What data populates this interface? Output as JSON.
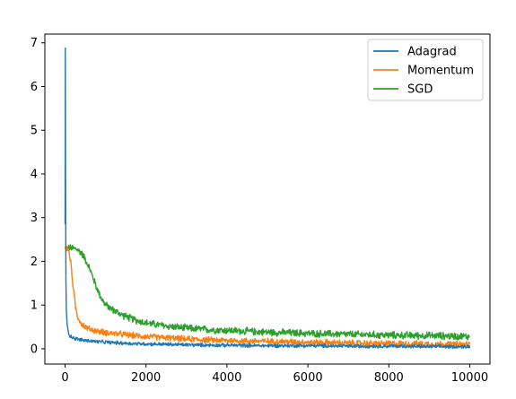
{
  "chart_data": {
    "type": "line",
    "title": "",
    "xlabel": "",
    "ylabel": "",
    "xlim": [
      -500,
      10500
    ],
    "ylim": [
      -0.35,
      7.2
    ],
    "xticks": [
      0,
      2000,
      4000,
      6000,
      8000,
      10000
    ],
    "yticks": [
      0,
      1,
      2,
      3,
      4,
      5,
      6,
      7
    ],
    "grid": false,
    "legend_position": "top-right",
    "series": [
      {
        "name": "Adagrad",
        "color": "#1f77b4",
        "x": [
          0,
          5,
          10,
          20,
          30,
          50,
          80,
          120,
          200,
          300,
          500,
          800,
          1200,
          1600,
          2000,
          3000,
          4000,
          5000,
          6000,
          7000,
          8000,
          9000,
          10000
        ],
        "y": [
          2.85,
          6.88,
          4.4,
          1.6,
          0.9,
          0.55,
          0.38,
          0.3,
          0.25,
          0.22,
          0.19,
          0.16,
          0.14,
          0.12,
          0.11,
          0.09,
          0.08,
          0.07,
          0.07,
          0.06,
          0.06,
          0.05,
          0.05
        ]
      },
      {
        "name": "Momentum",
        "color": "#ff7f0e",
        "x": [
          0,
          60,
          100,
          150,
          200,
          250,
          300,
          400,
          500,
          600,
          800,
          1000,
          1300,
          1600,
          2000,
          2500,
          3000,
          4000,
          5000,
          6000,
          7000,
          8000,
          9000,
          10000
        ],
        "y": [
          2.3,
          2.3,
          2.2,
          1.9,
          1.4,
          1.0,
          0.75,
          0.58,
          0.5,
          0.45,
          0.4,
          0.37,
          0.34,
          0.31,
          0.28,
          0.25,
          0.22,
          0.19,
          0.17,
          0.15,
          0.13,
          0.12,
          0.11,
          0.1
        ]
      },
      {
        "name": "SGD",
        "color": "#2ca02c",
        "x": [
          0,
          200,
          300,
          400,
          500,
          600,
          700,
          800,
          900,
          1000,
          1200,
          1400,
          1600,
          1800,
          2000,
          2500,
          3000,
          3500,
          4000,
          5000,
          6000,
          7000,
          8000,
          9000,
          10000
        ],
        "y": [
          2.3,
          2.3,
          2.27,
          2.2,
          2.05,
          1.85,
          1.6,
          1.35,
          1.15,
          1.0,
          0.88,
          0.78,
          0.7,
          0.64,
          0.59,
          0.52,
          0.47,
          0.44,
          0.42,
          0.38,
          0.35,
          0.33,
          0.31,
          0.3,
          0.28
        ]
      }
    ]
  }
}
